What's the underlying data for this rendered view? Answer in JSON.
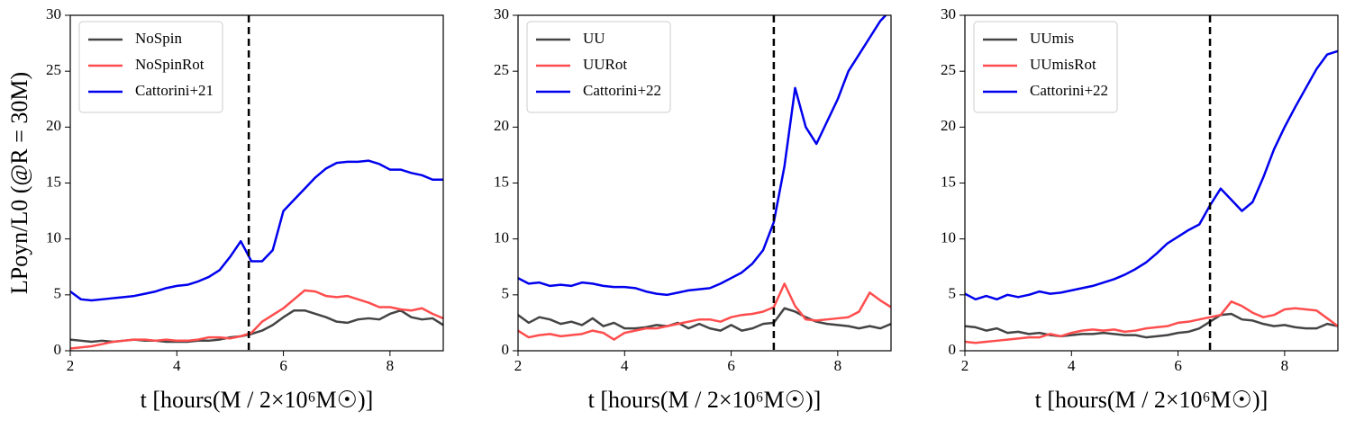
{
  "chart_data": [
    {
      "type": "line",
      "xlabel": "t  [hours(M / 2×10⁶M☉)]",
      "ylabel": "LPoyn/L0   (@R = 30M)",
      "x": [
        2.0,
        2.2,
        2.4,
        2.6,
        2.8,
        3.0,
        3.2,
        3.4,
        3.6,
        3.8,
        4.0,
        4.2,
        4.4,
        4.6,
        4.8,
        5.0,
        5.2,
        5.4,
        5.6,
        5.8,
        6.0,
        6.2,
        6.4,
        6.6,
        6.8,
        7.0,
        7.2,
        7.4,
        7.6,
        7.8,
        8.0,
        8.2,
        8.4,
        8.6,
        8.8,
        9.0
      ],
      "series": [
        {
          "name": "NoSpin",
          "color": "#444444",
          "values": [
            1.0,
            0.9,
            0.8,
            0.9,
            0.8,
            0.9,
            1.0,
            0.9,
            0.9,
            0.8,
            0.8,
            0.8,
            0.9,
            0.9,
            1.0,
            1.2,
            1.3,
            1.5,
            1.8,
            2.3,
            3.0,
            3.6,
            3.6,
            3.3,
            3.0,
            2.6,
            2.5,
            2.8,
            2.9,
            2.8,
            3.3,
            3.6,
            3.0,
            2.8,
            2.9,
            2.3
          ]
        },
        {
          "name": "NoSpinRot",
          "color": "#ff4d4d",
          "values": [
            0.2,
            0.3,
            0.4,
            0.6,
            0.8,
            0.9,
            1.0,
            1.0,
            0.9,
            1.0,
            0.9,
            0.9,
            1.0,
            1.2,
            1.2,
            1.1,
            1.3,
            1.6,
            2.6,
            3.2,
            3.8,
            4.6,
            5.4,
            5.3,
            4.9,
            4.8,
            4.9,
            4.6,
            4.3,
            3.9,
            3.9,
            3.7,
            3.6,
            3.8,
            3.3,
            2.9
          ]
        },
        {
          "name": "Cattorini+21",
          "color": "#0000ee",
          "values": [
            5.3,
            4.6,
            4.5,
            4.6,
            4.7,
            4.8,
            4.9,
            5.1,
            5.3,
            5.6,
            5.8,
            5.9,
            6.2,
            6.6,
            7.2,
            8.4,
            9.8,
            8.0,
            8.0,
            9.0,
            12.5,
            13.5,
            14.5,
            15.5,
            16.3,
            16.8,
            16.9,
            16.9,
            17.0,
            16.7,
            16.2,
            16.2,
            15.9,
            15.7,
            15.3,
            15.3
          ]
        }
      ],
      "vline": 5.35,
      "xlim": [
        2,
        9
      ],
      "ylim": [
        0,
        30
      ],
      "xticks": [
        2,
        4,
        6,
        8
      ],
      "yticks": [
        0,
        5,
        10,
        15,
        20,
        25,
        30
      ],
      "legend": "upper left"
    },
    {
      "type": "line",
      "xlabel": "t  [hours(M / 2×10⁶M☉)]",
      "x": [
        2.0,
        2.2,
        2.4,
        2.6,
        2.8,
        3.0,
        3.2,
        3.4,
        3.6,
        3.8,
        4.0,
        4.2,
        4.4,
        4.6,
        4.8,
        5.0,
        5.2,
        5.4,
        5.6,
        5.8,
        6.0,
        6.2,
        6.4,
        6.6,
        6.8,
        7.0,
        7.2,
        7.4,
        7.6,
        7.8,
        8.0,
        8.2,
        8.4,
        8.6,
        8.8,
        9.0
      ],
      "series": [
        {
          "name": "UU",
          "color": "#444444",
          "values": [
            3.2,
            2.5,
            3.0,
            2.8,
            2.4,
            2.6,
            2.3,
            2.9,
            2.2,
            2.5,
            2.0,
            2.0,
            2.1,
            2.3,
            2.2,
            2.5,
            2.0,
            2.4,
            2.0,
            1.8,
            2.3,
            1.8,
            2.0,
            2.4,
            2.5,
            3.8,
            3.5,
            3.0,
            2.6,
            2.4,
            2.3,
            2.2,
            2.0,
            2.2,
            2.0,
            2.4
          ]
        },
        {
          "name": "UURot",
          "color": "#ff4d4d",
          "values": [
            1.8,
            1.2,
            1.4,
            1.5,
            1.3,
            1.4,
            1.5,
            1.8,
            1.6,
            1.0,
            1.6,
            1.8,
            2.0,
            2.0,
            2.2,
            2.4,
            2.6,
            2.8,
            2.8,
            2.6,
            3.0,
            3.2,
            3.3,
            3.5,
            3.9,
            6.0,
            4.0,
            2.8,
            2.7,
            2.8,
            2.9,
            3.0,
            3.5,
            5.2,
            4.5,
            3.9
          ]
        },
        {
          "name": "Cattorini+22",
          "color": "#0000ee",
          "values": [
            6.5,
            6.0,
            6.1,
            5.8,
            5.9,
            5.8,
            6.1,
            6.0,
            5.8,
            5.7,
            5.7,
            5.6,
            5.3,
            5.1,
            5.0,
            5.2,
            5.4,
            5.5,
            5.6,
            6.0,
            6.5,
            7.0,
            7.8,
            9.0,
            11.5,
            16.5,
            23.5,
            20.0,
            18.5,
            20.5,
            22.5,
            25.0,
            26.5,
            28.0,
            29.5,
            30.5
          ]
        }
      ],
      "vline": 6.8,
      "xlim": [
        2,
        9
      ],
      "ylim": [
        0,
        30
      ],
      "xticks": [
        2,
        4,
        6,
        8
      ],
      "yticks": [
        0,
        5,
        10,
        15,
        20,
        25,
        30
      ],
      "legend": "upper left"
    },
    {
      "type": "line",
      "xlabel": "t  [hours(M / 2×10⁶M☉)]",
      "x": [
        2.0,
        2.2,
        2.4,
        2.6,
        2.8,
        3.0,
        3.2,
        3.4,
        3.6,
        3.8,
        4.0,
        4.2,
        4.4,
        4.6,
        4.8,
        5.0,
        5.2,
        5.4,
        5.6,
        5.8,
        6.0,
        6.2,
        6.4,
        6.6,
        6.8,
        7.0,
        7.2,
        7.4,
        7.6,
        7.8,
        8.0,
        8.2,
        8.4,
        8.6,
        8.8,
        9.0
      ],
      "series": [
        {
          "name": "UUmis",
          "color": "#444444",
          "values": [
            2.2,
            2.1,
            1.8,
            2.0,
            1.6,
            1.7,
            1.5,
            1.6,
            1.4,
            1.3,
            1.4,
            1.5,
            1.5,
            1.6,
            1.5,
            1.4,
            1.4,
            1.2,
            1.3,
            1.4,
            1.6,
            1.7,
            2.0,
            2.6,
            3.2,
            3.3,
            2.8,
            2.7,
            2.4,
            2.2,
            2.3,
            2.1,
            2.0,
            2.0,
            2.4,
            2.2
          ]
        },
        {
          "name": "UUmisRot",
          "color": "#ff4d4d",
          "values": [
            0.8,
            0.7,
            0.8,
            0.9,
            1.0,
            1.1,
            1.2,
            1.2,
            1.5,
            1.3,
            1.6,
            1.8,
            1.9,
            1.8,
            1.9,
            1.7,
            1.8,
            2.0,
            2.1,
            2.2,
            2.5,
            2.6,
            2.8,
            3.0,
            3.2,
            4.4,
            4.0,
            3.4,
            3.0,
            3.2,
            3.7,
            3.8,
            3.7,
            3.6,
            2.9,
            2.2
          ]
        },
        {
          "name": "Cattorini+22",
          "color": "#0000ee",
          "values": [
            5.1,
            4.6,
            4.9,
            4.6,
            5.0,
            4.8,
            5.0,
            5.3,
            5.1,
            5.2,
            5.4,
            5.6,
            5.8,
            6.1,
            6.4,
            6.8,
            7.3,
            7.9,
            8.7,
            9.6,
            10.2,
            10.8,
            11.3,
            13.0,
            14.5,
            13.5,
            12.5,
            13.3,
            15.5,
            18.0,
            20.0,
            21.8,
            23.5,
            25.2,
            26.5,
            26.8
          ]
        }
      ],
      "vline": 6.6,
      "xlim": [
        2,
        9
      ],
      "ylim": [
        0,
        30
      ],
      "xticks": [
        2,
        4,
        6,
        8
      ],
      "yticks": [
        0,
        5,
        10,
        15,
        20,
        25,
        30
      ],
      "legend": "upper left"
    }
  ]
}
